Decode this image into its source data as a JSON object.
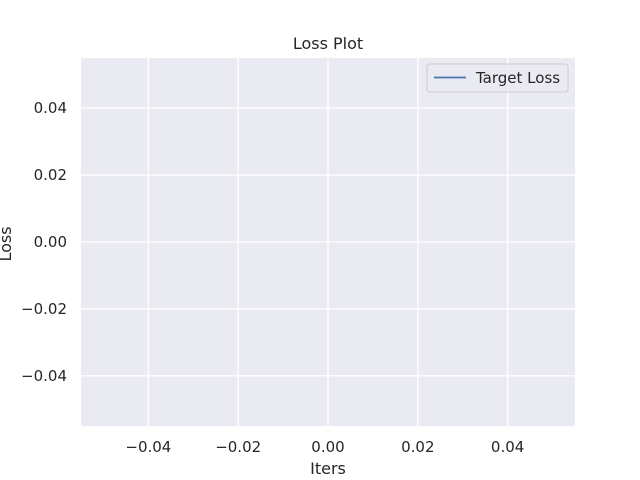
{
  "chart_data": {
    "type": "line",
    "title": "Loss Plot",
    "xlabel": "Iters",
    "ylabel": "Loss",
    "xlim": [
      -0.055,
      0.055
    ],
    "ylim": [
      -0.055,
      0.055
    ],
    "xticks": [
      -0.04,
      -0.02,
      0.0,
      0.02,
      0.04
    ],
    "xtick_labels": [
      "−0.04",
      "−0.02",
      "0.00",
      "0.02",
      "0.04"
    ],
    "yticks": [
      0.04,
      0.02,
      0.0,
      -0.02,
      -0.04
    ],
    "ytick_labels": [
      "0.04",
      "0.02",
      "0.00",
      "−0.02",
      "−0.04"
    ],
    "grid": true,
    "legend_position": "top-right",
    "series": [
      {
        "name": "Target Loss",
        "color": "#4c72b0",
        "x": [],
        "y": []
      }
    ]
  },
  "colors": {
    "plot_background": "#eaeaf2",
    "grid": "#ffffff",
    "text": "#262626"
  }
}
